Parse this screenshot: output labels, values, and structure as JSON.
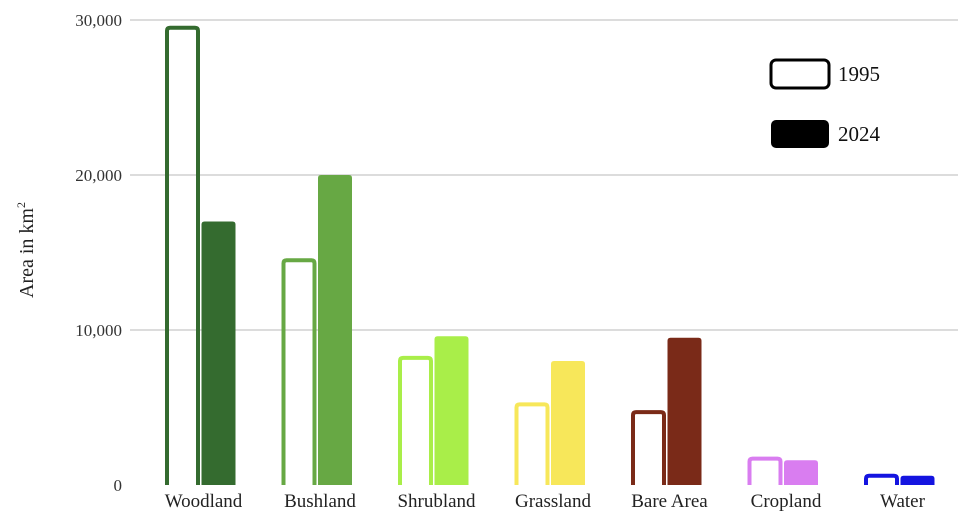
{
  "chart_data": {
    "type": "bar",
    "categories": [
      "Woodland",
      "Bushland",
      "Shrubland",
      "Grassland",
      "Bare Area",
      "Cropland",
      "Water"
    ],
    "series": [
      {
        "name": "1995",
        "values": [
          29500,
          14500,
          8200,
          5200,
          4700,
          1700,
          600
        ]
      },
      {
        "name": "2024",
        "values": [
          17000,
          20000,
          9600,
          8000,
          9500,
          1600,
          600
        ]
      }
    ],
    "category_colors": [
      "#346B2F",
      "#67A844",
      "#A9EE49",
      "#F7E75A",
      "#7A2A18",
      "#D97DF0",
      "#1414E0"
    ],
    "ylabel_main": "Area in km",
    "ylabel_sup": "2",
    "yticks": [
      {
        "value": 0,
        "label": "0"
      },
      {
        "value": 10000,
        "label": "10,000"
      },
      {
        "value": 20000,
        "label": "20,000"
      },
      {
        "value": 30000,
        "label": "30,000"
      }
    ],
    "ylim": [
      0,
      30000
    ],
    "grid": true,
    "legend_position": "top-right",
    "legend": [
      {
        "label": "1995",
        "style": "outline"
      },
      {
        "label": "2024",
        "style": "filled"
      }
    ]
  }
}
